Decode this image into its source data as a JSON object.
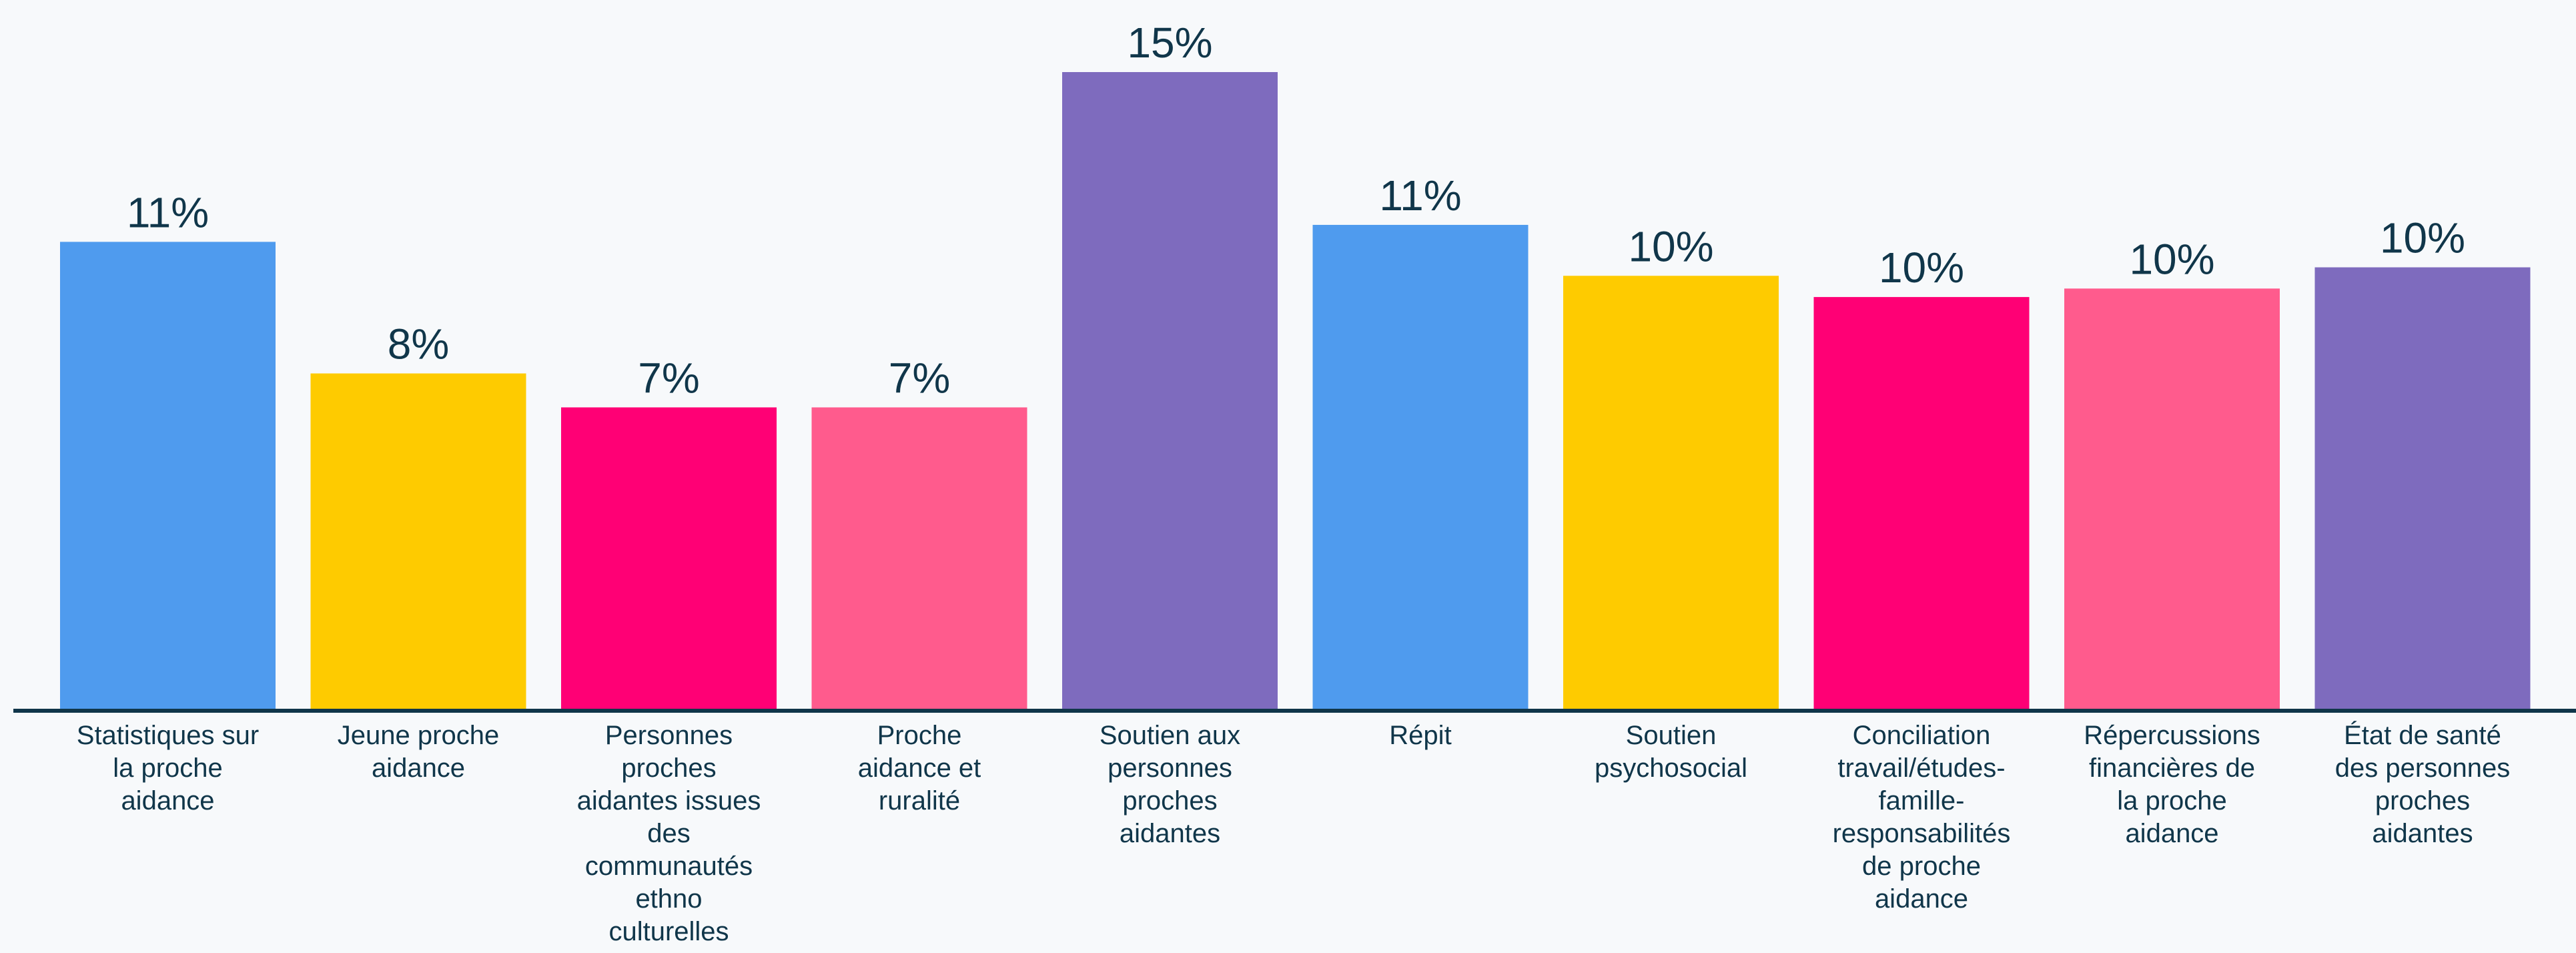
{
  "chart_data": {
    "type": "bar",
    "title": "",
    "xlabel": "",
    "ylabel": "",
    "ylim": [
      0,
      15
    ],
    "grid": false,
    "categories": [
      "Statistiques sur la proche aidance",
      "Jeune proche aidance",
      "Personnes proches aidantes issues des communautés ethno culturelles",
      "Proche aidance et ruralité",
      "Soutien aux personnes proches aidantes",
      "Répit",
      "Soutien psychosocial",
      "Conciliation travail/études-famille-responsabilités de proche aidance",
      "Répercussions financières de la proche aidance",
      "État de santé des personnes proches aidantes"
    ],
    "category_lines": [
      [
        "Statistiques sur",
        "la proche",
        "aidance"
      ],
      [
        "Jeune proche",
        "aidance"
      ],
      [
        "Personnes",
        "proches",
        "aidantes issues",
        "des",
        "communautés",
        "ethno",
        "culturelles"
      ],
      [
        "Proche",
        "aidance et",
        "ruralité"
      ],
      [
        "Soutien aux",
        "personnes",
        "proches",
        "aidantes"
      ],
      [
        "Répit"
      ],
      [
        "Soutien",
        "psychosocial"
      ],
      [
        "Conciliation",
        "travail/études-",
        "famille-",
        "responsabilités",
        "de proche",
        "aidance"
      ],
      [
        "Répercussions",
        "financières de",
        "la proche",
        "aidance"
      ],
      [
        "État de santé",
        "des personnes",
        "proches",
        "aidantes"
      ]
    ],
    "values": [
      11,
      8,
      7,
      7,
      15,
      11,
      10,
      10,
      10,
      10
    ],
    "value_labels": [
      "11%",
      "8%",
      "7%",
      "7%",
      "15%",
      "11%",
      "10%",
      "10%",
      "10%",
      "10%"
    ],
    "bar_heights_relative": [
      11.0,
      7.9,
      7.1,
      7.1,
      15.0,
      11.4,
      10.2,
      9.7,
      9.9,
      10.4
    ],
    "colors": [
      "#4f9bee",
      "#fecb00",
      "#ff0075",
      "#ff5b8d",
      "#7e6bbe",
      "#4f9bee",
      "#fecb00",
      "#ff0075",
      "#ff5b8d",
      "#7e6bbe"
    ],
    "label_color": "#10364a",
    "axis_color": "#10364a"
  }
}
